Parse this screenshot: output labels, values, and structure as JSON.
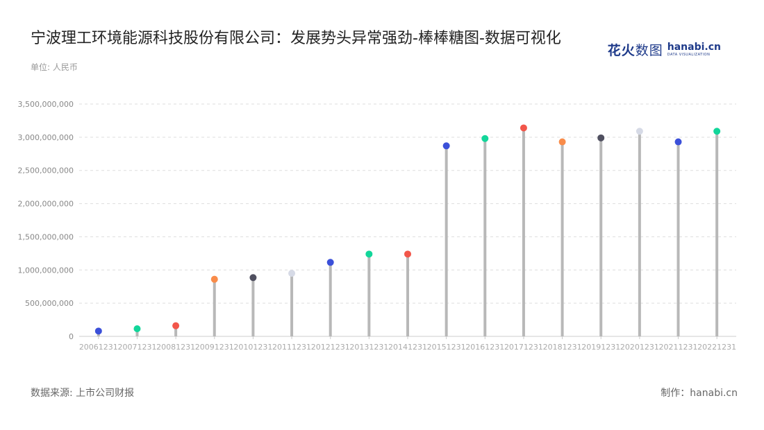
{
  "header": {
    "title": "宁波理工环境能源科技股份有限公司：发展势头异常强劲-棒棒糖图-数据可视化",
    "unit": "单位: 人民币"
  },
  "logo": {
    "cn_bold": "花火",
    "cn_thin": "数图",
    "en": "hanabi.cn",
    "en_sub": "DATA VISUALIZATION"
  },
  "footer": {
    "source": "数据来源: 上市公司财报",
    "credit": "制作：hanabi.cn"
  },
  "chart_data": {
    "type": "lollipop",
    "categories": [
      "20061231",
      "20071231",
      "20081231",
      "20091231",
      "20101231",
      "20111231",
      "20121231",
      "20131231",
      "20141231",
      "20151231",
      "20161231",
      "20171231",
      "20181231",
      "20191231",
      "20201231",
      "20211231",
      "20221231"
    ],
    "values": [
      80000000,
      115000000,
      160000000,
      860000000,
      885000000,
      950000000,
      1115000000,
      1240000000,
      1240000000,
      2870000000,
      2980000000,
      3140000000,
      2930000000,
      2990000000,
      3090000000,
      2930000000,
      3090000000
    ],
    "colors": [
      "#3b50d9",
      "#12d69a",
      "#f2564a",
      "#f98c4a",
      "#505060",
      "#d6dae6",
      "#3b50d9",
      "#12d69a",
      "#f2564a",
      "#3b50d9",
      "#12d69a",
      "#f2564a",
      "#f98c4a",
      "#505060",
      "#d6dae6",
      "#3b50d9",
      "#12d69a"
    ],
    "y_ticks": [
      "0",
      "500,000,000",
      "1,000,000,000",
      "1,500,000,000",
      "2,000,000,000",
      "2,500,000,000",
      "3,000,000,000",
      "3,500,000,000"
    ],
    "ylim": [
      0,
      3500000000
    ],
    "grid": true,
    "stem_color": "#b8b8b8"
  }
}
